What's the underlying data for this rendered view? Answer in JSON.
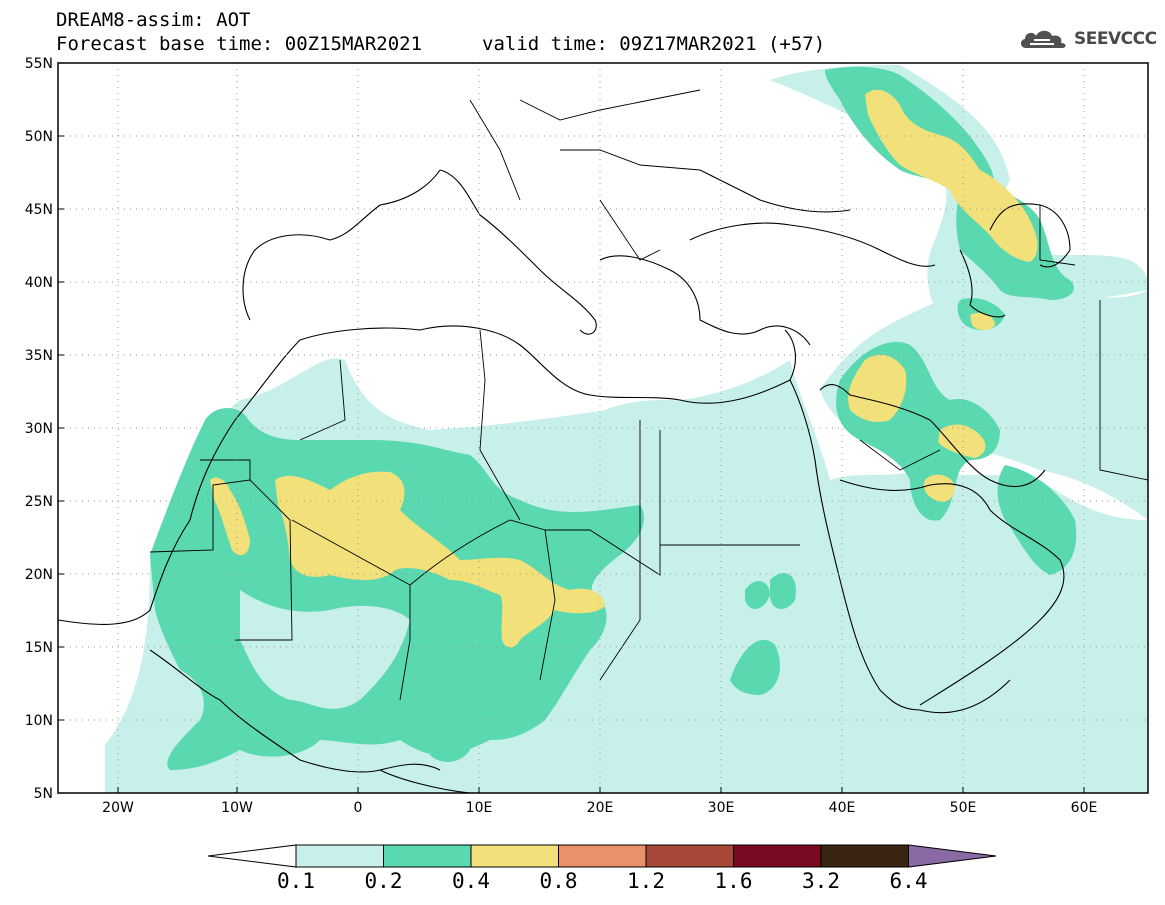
{
  "header": {
    "title_line1": "DREAM8-assim: AOT",
    "title_line2": "Forecast base time: 00Z15MAR2021",
    "valid_time": "valid time: 09Z17MAR2021 (+57)",
    "logo_text": "SEEVCCC",
    "logo_icon": "cloud-icon"
  },
  "map": {
    "lat_labels": [
      "55N",
      "50N",
      "45N",
      "40N",
      "35N",
      "30N",
      "25N",
      "20N",
      "15N",
      "10N",
      "5N"
    ],
    "lon_labels": [
      "20W",
      "10W",
      "0",
      "10E",
      "20E",
      "30E",
      "40E",
      "50E",
      "60E"
    ],
    "grid": "dotted"
  },
  "colorbar": {
    "levels": [
      "0.1",
      "0.2",
      "0.4",
      "0.8",
      "1.2",
      "1.6",
      "3.2",
      "6.4"
    ],
    "colors": [
      "#c8f0ea",
      "#5ad8b0",
      "#f2e07a",
      "#e8916a",
      "#a84838",
      "#7a0a22",
      "#3a2412",
      "#8a6aa4"
    ],
    "under_color": "#ffffff"
  },
  "dust_colors": {
    "level1": "#c8f0ea",
    "level2": "#5ad8b0",
    "level3": "#f2e07a"
  }
}
